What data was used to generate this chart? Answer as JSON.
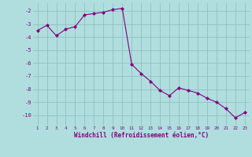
{
  "x": [
    1,
    2,
    3,
    4,
    5,
    6,
    7,
    8,
    9,
    10,
    11,
    12,
    13,
    14,
    15,
    16,
    17,
    18,
    19,
    20,
    21,
    22,
    23
  ],
  "y": [
    -3.5,
    -3.1,
    -3.9,
    -3.4,
    -3.2,
    -2.3,
    -2.2,
    -2.1,
    -1.9,
    -1.8,
    -6.1,
    -6.8,
    -7.4,
    -8.1,
    -8.5,
    -7.9,
    -8.1,
    -8.3,
    -8.7,
    -9.0,
    -9.5,
    -10.2,
    -9.8
  ],
  "line_color": "#800080",
  "marker_color": "#800080",
  "bg_color": "#b0dede",
  "grid_color": "#90c0c0",
  "text_color": "#800080",
  "xlabel": "Windchill (Refroidissement éolien,°C)",
  "ylim": [
    -10.8,
    -1.4
  ],
  "yticks": [
    -2,
    -3,
    -4,
    -5,
    -6,
    -7,
    -8,
    -9,
    -10
  ],
  "xlim": [
    0.5,
    23.5
  ],
  "xticks": [
    1,
    2,
    3,
    4,
    5,
    6,
    7,
    8,
    9,
    10,
    11,
    12,
    13,
    14,
    15,
    16,
    17,
    18,
    19,
    20,
    21,
    22,
    23
  ]
}
